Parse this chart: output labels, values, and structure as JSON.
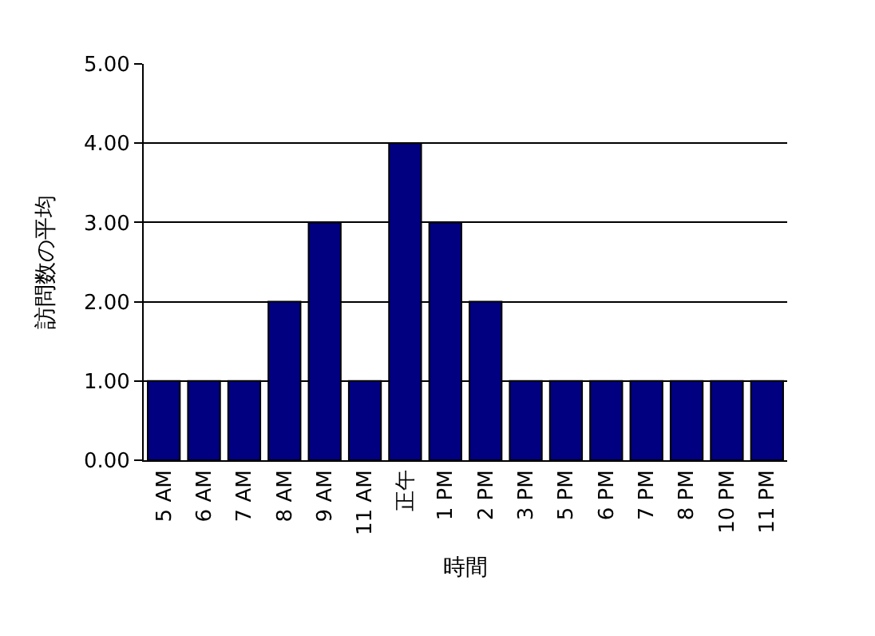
{
  "chart_data": {
    "type": "bar",
    "xlabel": "時間",
    "ylabel": "訪問数の平均",
    "categories": [
      "5 AM",
      "6 AM",
      "7 AM",
      "8 AM",
      "9 AM",
      "11 AM",
      "正午",
      "1 PM",
      "2 PM",
      "3 PM",
      "5 PM",
      "6 PM",
      "7 PM",
      "8 PM",
      "10 PM",
      "11 PM"
    ],
    "values": [
      1,
      1,
      1,
      2,
      3,
      1,
      4,
      3,
      2,
      1,
      1,
      1,
      1,
      1,
      1,
      1
    ],
    "color": "#000080",
    "ylim": [
      0,
      5
    ],
    "yticks": [
      {
        "value": 0,
        "label": "0.00"
      },
      {
        "value": 1,
        "label": "1.00"
      },
      {
        "value": 2,
        "label": "2.00"
      },
      {
        "value": 3,
        "label": "3.00"
      },
      {
        "value": 4,
        "label": "4.00"
      },
      {
        "value": 5,
        "label": "5.00"
      }
    ],
    "grid": "y",
    "legend": false
  }
}
